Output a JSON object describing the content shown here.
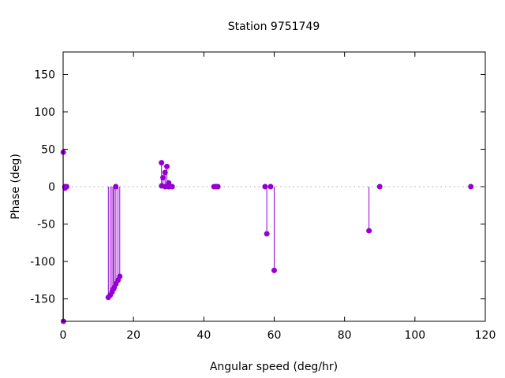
{
  "chart_data": {
    "type": "impulse",
    "title": "Station 9751749",
    "xlabel": "Angular speed (deg/hr)",
    "ylabel": "Phase (deg)",
    "xlim": [
      0,
      120
    ],
    "ylim": [
      -180,
      180
    ],
    "xticks": [
      0,
      20,
      40,
      60,
      80,
      100,
      120
    ],
    "yticks": [
      -150,
      -100,
      -50,
      0,
      50,
      100,
      150
    ],
    "color": "#9400d3",
    "grid": false,
    "zero_line": true,
    "points": [
      [
        0.04,
        46
      ],
      [
        0.08,
        -180
      ],
      [
        0.5,
        0
      ],
      [
        0.55,
        -2
      ],
      [
        1.0,
        0
      ],
      [
        12.85,
        -148
      ],
      [
        13.4,
        -145
      ],
      [
        13.9,
        -141
      ],
      [
        14.3,
        -137
      ],
      [
        14.5,
        -135
      ],
      [
        14.96,
        0
      ],
      [
        15.0,
        -130
      ],
      [
        15.6,
        -125
      ],
      [
        16.1,
        -120
      ],
      [
        27.97,
        32
      ],
      [
        28.0,
        1
      ],
      [
        28.4,
        12
      ],
      [
        28.98,
        19
      ],
      [
        29.0,
        0
      ],
      [
        29.5,
        27
      ],
      [
        29.96,
        0
      ],
      [
        30.0,
        5
      ],
      [
        30.08,
        0
      ],
      [
        31.0,
        0
      ],
      [
        42.9,
        0
      ],
      [
        43.5,
        0
      ],
      [
        44.0,
        0
      ],
      [
        57.4,
        0
      ],
      [
        57.9,
        -63
      ],
      [
        58.98,
        0
      ],
      [
        60.0,
        -112
      ],
      [
        86.95,
        -59
      ],
      [
        90.0,
        0
      ],
      [
        115.9,
        0
      ]
    ]
  }
}
